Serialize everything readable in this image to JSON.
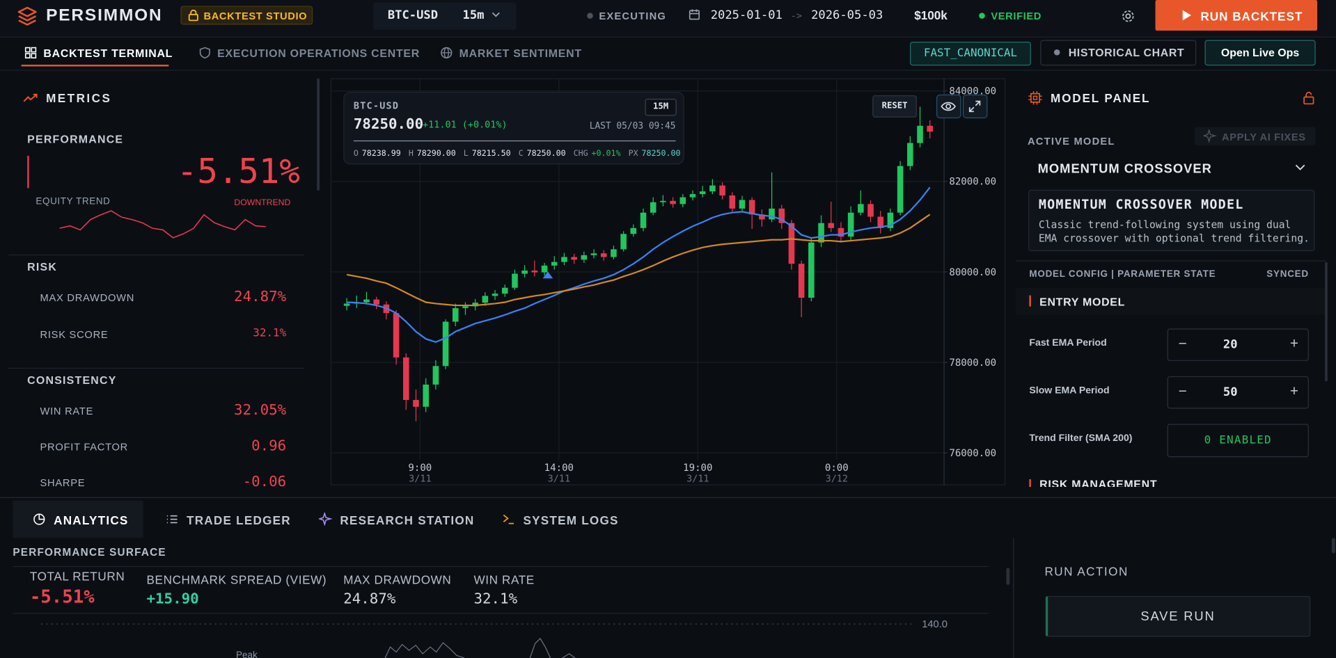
{
  "header": {
    "brand": "PERSIMMON",
    "badge": "BACKTEST STUDIO",
    "symbol": "BTC-USD",
    "interval": "15m",
    "status": "EXECUTING",
    "date_start": "2025-01-01",
    "date_arrow": "->",
    "date_end": "2026-05-03",
    "capital": "$100k",
    "verification": "VERIFIED",
    "run_button": "RUN BACKTEST"
  },
  "nav": {
    "tabs": [
      "BACKTEST TERMINAL",
      "EXECUTION OPERATIONS CENTER",
      "MARKET SENTIMENT"
    ],
    "mode": "FAST_CANONICAL",
    "historical": "HISTORICAL CHART",
    "live": "Open Live Ops"
  },
  "metrics": {
    "title": "METRICS",
    "performance": {
      "label": "PERFORMANCE",
      "value": "-5.51%",
      "equity_label": "EQUITY TREND",
      "trend": "DOWNTREND",
      "equity": {
        "values": [
          -2.8,
          -2.5,
          -3.0,
          -1.7,
          -1.1,
          -0.6,
          -1.4,
          -1.7,
          -2.1,
          -2.8,
          -3.0,
          -4.0,
          -3.5,
          -2.8,
          -1.1,
          -2.1,
          -2.6,
          -3.0,
          -1.7,
          -2.5,
          -2.6
        ],
        "ylim": [
          -4.5,
          0
        ],
        "color": "#e5384f"
      }
    },
    "risk": {
      "label": "RISK",
      "rows": [
        {
          "name": "MAX DRAWDOWN",
          "value": "24.87%"
        },
        {
          "name": "RISK SCORE",
          "value": "32.1%"
        }
      ]
    },
    "consistency": {
      "label": "CONSISTENCY",
      "rows": [
        {
          "name": "WIN RATE",
          "value": "32.05%"
        },
        {
          "name": "PROFIT FACTOR",
          "value": "0.96"
        },
        {
          "name": "SHARPE",
          "value": "-0.06"
        }
      ]
    }
  },
  "quote": {
    "symbol": "BTC-USD",
    "interval": "15M",
    "price": "78250.00",
    "change": "+11.01 (+0.01%)",
    "last": "LAST 05/03 09:45",
    "ohlc": [
      {
        "k": "O",
        "v": "78238.99"
      },
      {
        "k": "H",
        "v": "78290.00"
      },
      {
        "k": "L",
        "v": "78215.50"
      },
      {
        "k": "C",
        "v": "78250.00"
      },
      {
        "k": "CHG",
        "v": "+0.01%"
      },
      {
        "k": "PX",
        "v": "78250.00"
      }
    ],
    "reset": "RESET"
  },
  "chart_data": {
    "type": "candlestick",
    "up_color": "#22c55e",
    "down_color": "#e5384f",
    "grid": true,
    "ylim": [
      75850,
      84260
    ],
    "yticks": [
      {
        "value": 76000,
        "label": "76000.00"
      },
      {
        "value": 78000,
        "label": "78000.00"
      },
      {
        "value": 80000,
        "label": "80000.00"
      },
      {
        "value": 82000,
        "label": "82000.00"
      },
      {
        "value": 84000,
        "label": "84000.00"
      }
    ],
    "x_labels": [
      {
        "time": "9:00",
        "date": "3/11"
      },
      {
        "time": "14:00",
        "date": "3/11"
      },
      {
        "time": "19:00",
        "date": "3/11"
      },
      {
        "time": "0:00",
        "date": "3/12"
      }
    ],
    "open": [
      79250,
      79300,
      79330,
      79390,
      79280,
      79090,
      78110,
      77170,
      77020,
      77510,
      77920,
      78900,
      79200,
      79240,
      79320,
      79470,
      79520,
      79650,
      79960,
      80030,
      79990,
      80140,
      80220,
      80330,
      80270,
      80370,
      80410,
      80330,
      80500,
      80840,
      80970,
      81310,
      81540,
      81570,
      81500,
      81650,
      81720,
      81780,
      81910,
      81690,
      81400,
      81590,
      81270,
      81160,
      81400,
      81080,
      80180,
      79430,
      80650,
      81080,
      80970,
      80780,
      81310,
      81500,
      81220,
      80970,
      81310,
      82340,
      82850,
      83230
    ],
    "high": [
      79420,
      79480,
      79560,
      79450,
      79350,
      79150,
      78200,
      77400,
      77650,
      78050,
      78950,
      79300,
      79330,
      79400,
      79550,
      79600,
      79720,
      80050,
      80150,
      80250,
      80200,
      80350,
      80420,
      80400,
      80450,
      80500,
      80480,
      80580,
      80900,
      81050,
      81400,
      81650,
      81700,
      81650,
      81720,
      81800,
      81900,
      82050,
      81980,
      81760,
      81680,
      81650,
      81380,
      82200,
      81480,
      81150,
      80250,
      80750,
      81250,
      81550,
      81100,
      81450,
      81800,
      81580,
      81350,
      81400,
      82450,
      83000,
      83650,
      83350
    ],
    "low": [
      79150,
      79200,
      79280,
      79180,
      78950,
      77950,
      76950,
      76700,
      76900,
      77400,
      77850,
      78800,
      79050,
      79150,
      79250,
      79380,
      79450,
      79600,
      79880,
      79900,
      79920,
      80050,
      80150,
      80180,
      80200,
      80300,
      80250,
      80280,
      80450,
      80780,
      80900,
      81250,
      81450,
      81420,
      81430,
      81580,
      81650,
      81720,
      81600,
      81300,
      81350,
      80950,
      81000,
      81100,
      80950,
      80050,
      79000,
      79350,
      80550,
      80880,
      80650,
      80700,
      81250,
      81100,
      80850,
      80900,
      81250,
      82250,
      82750,
      82950
    ],
    "close": [
      79300,
      79330,
      79390,
      79280,
      79090,
      78110,
      77170,
      77020,
      77510,
      77920,
      78900,
      79200,
      79240,
      79320,
      79470,
      79520,
      79650,
      79960,
      80030,
      79990,
      80140,
      80220,
      80330,
      80270,
      80370,
      80410,
      80330,
      80500,
      80840,
      80970,
      81310,
      81540,
      81570,
      81500,
      81650,
      81720,
      81780,
      81910,
      81690,
      81400,
      81590,
      81270,
      81160,
      81400,
      81080,
      80180,
      79430,
      80650,
      81080,
      80970,
      80780,
      81310,
      81500,
      81220,
      80970,
      81310,
      82340,
      82850,
      83230,
      83100
    ],
    "series": [
      {
        "color": "#3b82f6",
        "values": [
          79330,
          79320,
          79300,
          79260,
          79200,
          79090,
          78900,
          78680,
          78520,
          78450,
          78540,
          78680,
          78770,
          78860,
          78920,
          78980,
          79050,
          79130,
          79200,
          79300,
          79390,
          79480,
          79580,
          79650,
          79730,
          79800,
          79860,
          79940,
          80050,
          80180,
          80330,
          80500,
          80650,
          80780,
          80900,
          81010,
          81100,
          81200,
          81270,
          81310,
          81330,
          81290,
          81250,
          81230,
          81160,
          81010,
          80820,
          80750,
          80780,
          80820,
          80820,
          80880,
          80930,
          80970,
          80990,
          81030,
          81160,
          81350,
          81590,
          81870
        ]
      },
      {
        "color": "#d4891f",
        "values": [
          79940,
          79900,
          79860,
          79800,
          79750,
          79650,
          79540,
          79430,
          79330,
          79300,
          79280,
          79260,
          79260,
          79260,
          79280,
          79300,
          79330,
          79390,
          79430,
          79470,
          79500,
          79540,
          79580,
          79620,
          79670,
          79710,
          79770,
          79820,
          79900,
          79970,
          80050,
          80140,
          80240,
          80330,
          80410,
          80480,
          80540,
          80580,
          80610,
          80630,
          80650,
          80670,
          80690,
          80710,
          80710,
          80730,
          80710,
          80690,
          80690,
          80690,
          80670,
          80690,
          80710,
          80730,
          80750,
          80780,
          80860,
          80970,
          81120,
          81270
        ]
      }
    ]
  },
  "model_panel": {
    "title": "MODEL PANEL",
    "active_label": "ACTIVE MODEL",
    "apply": "APPLY AI FIXES",
    "selected": "MOMENTUM CROSSOVER",
    "card_title": "MOMENTUM CROSSOVER MODEL",
    "card_desc": "Classic trend-following system using dual EMA crossover with optional trend filtering.",
    "config_label": "MODEL CONFIG | PARAMETER STATE",
    "sync": "SYNCED",
    "section": "ENTRY MODEL",
    "params": [
      {
        "name": "Fast EMA Period",
        "value": 20
      },
      {
        "name": "Slow EMA Period",
        "value": 50
      },
      {
        "name": "Trend Filter (SMA 200)",
        "value": "0 ENABLED"
      }
    ],
    "next_section": "RISK MANAGEMENT"
  },
  "bottom": {
    "tabs": [
      "ANALYTICS",
      "TRADE LEDGER",
      "RESEARCH STATION",
      "SYSTEM LOGS"
    ],
    "section": "PERFORMANCE SURFACE",
    "stats": [
      {
        "label": "TOTAL RETURN",
        "value": "-5.51%"
      },
      {
        "label": "BENCHMARK SPREAD (VIEW)",
        "value": "+15.90"
      },
      {
        "label": "MAX DRAWDOWN",
        "value": "24.87%"
      },
      {
        "label": "WIN RATE",
        "value": "32.1%"
      }
    ],
    "tick": "140.0",
    "peak": "Peak",
    "run_action": "RUN ACTION",
    "save": "SAVE RUN"
  }
}
